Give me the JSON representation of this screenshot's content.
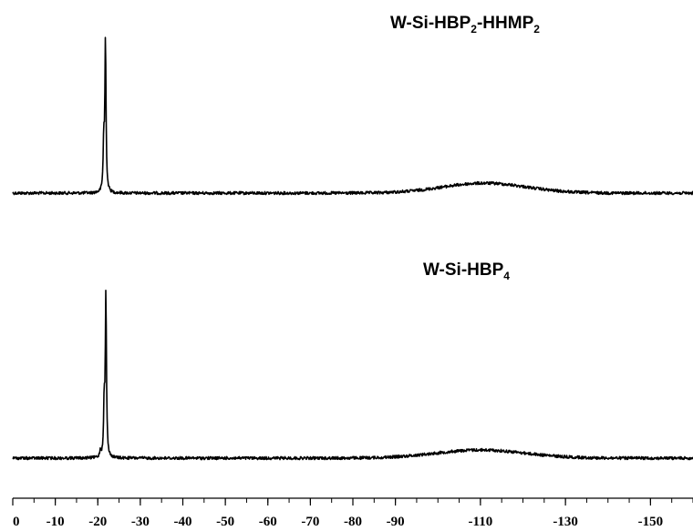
{
  "chart_data": {
    "type": "line",
    "title": "",
    "xlabel": "",
    "ylabel": "",
    "x_reversed": true,
    "xlim": [
      0,
      -160
    ],
    "x_ticks": [
      0,
      -10,
      -20,
      -30,
      -40,
      -50,
      -60,
      -70,
      -80,
      -90,
      -110,
      -130,
      -150
    ],
    "x_tick_labels": [
      "0",
      "-10",
      "-20",
      "-30",
      "-40",
      "-50",
      "-60",
      "-70",
      "-80",
      "-90",
      "-110",
      "-130",
      "-150"
    ],
    "grid": false,
    "series": [
      {
        "label": {
          "main": "W-Si-HBP",
          "sub1": "2",
          "mid": "-HHMP",
          "sub2": "2"
        },
        "color": "#000000",
        "peaks": [
          {
            "x": -21.8,
            "height": 1.0
          },
          {
            "x": -21.4,
            "height": 0.32
          }
        ],
        "broad_band": {
          "center": -111,
          "height": 0.065,
          "width": 14
        }
      },
      {
        "label": {
          "main": "W-Si-HBP",
          "sub1": "4",
          "mid": "",
          "sub2": ""
        },
        "color": "#000000",
        "peaks": [
          {
            "x": -21.9,
            "height": 1.0
          },
          {
            "x": -21.5,
            "height": 0.31
          },
          {
            "x": -20.6,
            "height": 0.04
          }
        ],
        "broad_band": {
          "center": -110,
          "height": 0.05,
          "width": 15
        }
      }
    ]
  }
}
